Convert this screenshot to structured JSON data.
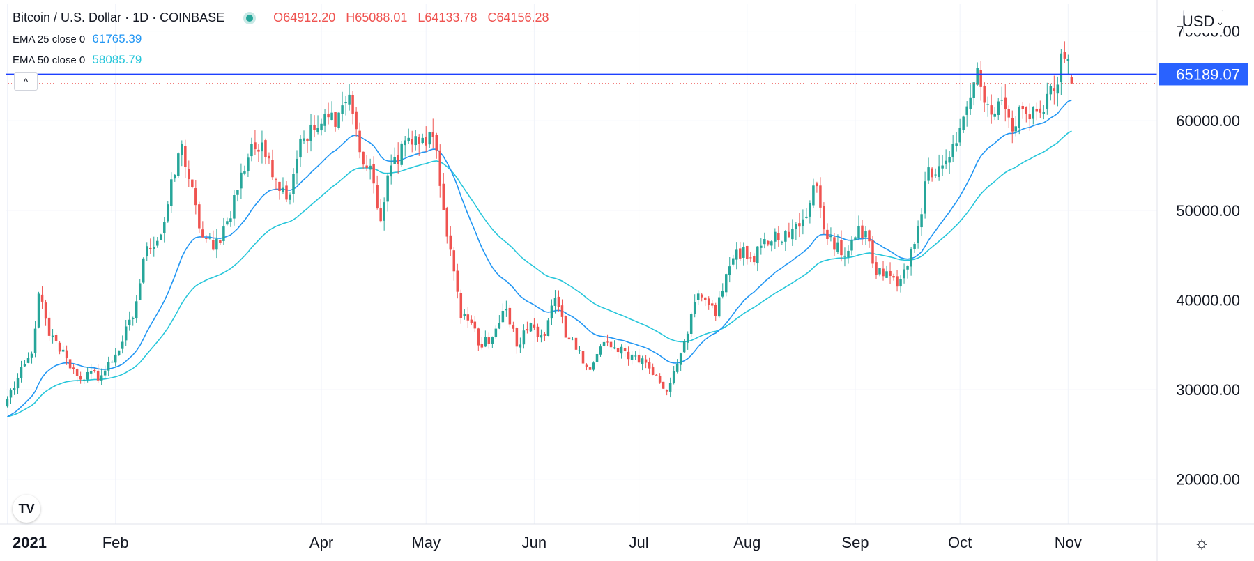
{
  "header": {
    "symbol": "Bitcoin / U.S. Dollar",
    "interval": "1D",
    "exchange": "COINBASE",
    "ohlc": {
      "o_label": "O",
      "o": "64912.20",
      "h_label": "H",
      "h": "65088.01",
      "l_label": "L",
      "l": "64133.78",
      "c_label": "C",
      "c": "64156.28"
    }
  },
  "indicators": [
    {
      "label": "EMA 25 close 0",
      "value": "61765.39",
      "color": "#2196f3"
    },
    {
      "label": "EMA 50 close 0",
      "value": "58085.79",
      "color": "#26c6da"
    }
  ],
  "controls": {
    "collapse_symbol": "^",
    "currency": "USD",
    "currency_arrow": "⌄",
    "logo_text": "TV",
    "settings_icon": "☼"
  },
  "colors": {
    "up": "#26a69a",
    "down": "#ef5350",
    "ema25": "#2196f3",
    "ema50": "#26c6da",
    "hline": "#1e40ff",
    "price_label_bg": "#2962ff",
    "grid": "#f0f3fa"
  },
  "chart_data": {
    "type": "candlestick",
    "title": "Bitcoin / U.S. Dollar, 1D, COINBASE",
    "ylim": [
      15000,
      73000
    ],
    "y_ticks": [
      20000,
      30000,
      40000,
      50000,
      60000,
      70000
    ],
    "y_tick_labels": [
      "20000.00",
      "30000.00",
      "40000.00",
      "50000.00",
      "60000.00",
      "70000.00"
    ],
    "x_tick_labels": [
      {
        "label": "2021",
        "index": 0
      },
      {
        "label": "Feb",
        "index": 31
      },
      {
        "label": "Apr",
        "index": 90
      },
      {
        "label": "May",
        "index": 120
      },
      {
        "label": "Jun",
        "index": 151
      },
      {
        "label": "Jul",
        "index": 181
      },
      {
        "label": "Aug",
        "index": 212
      },
      {
        "label": "Sep",
        "index": 243
      },
      {
        "label": "Oct",
        "index": 273
      },
      {
        "label": "Nov",
        "index": 304
      }
    ],
    "total_slots": 330,
    "horizontal_line": 65189.07,
    "horizontal_line_label": "65189.07",
    "last_close": 64156.28,
    "anchors": [
      [
        0,
        29000
      ],
      [
        7,
        34000
      ],
      [
        9,
        40700
      ],
      [
        12,
        36000
      ],
      [
        17,
        33500
      ],
      [
        20,
        31500
      ],
      [
        27,
        31600
      ],
      [
        31,
        33900
      ],
      [
        36,
        38000
      ],
      [
        40,
        46000
      ],
      [
        44,
        47300
      ],
      [
        50,
        57400
      ],
      [
        55,
        48000
      ],
      [
        59,
        45600
      ],
      [
        63,
        48800
      ],
      [
        70,
        57400
      ],
      [
        75,
        55800
      ],
      [
        80,
        51200
      ],
      [
        84,
        58000
      ],
      [
        88,
        59000
      ],
      [
        95,
        60900
      ],
      [
        98,
        62900
      ],
      [
        101,
        56500
      ],
      [
        105,
        53000
      ],
      [
        107,
        48800
      ],
      [
        110,
        55000
      ],
      [
        114,
        57800
      ],
      [
        118,
        57400
      ],
      [
        122,
        58200
      ],
      [
        125,
        50000
      ],
      [
        128,
        43200
      ],
      [
        130,
        38000
      ],
      [
        133,
        37400
      ],
      [
        136,
        34700
      ],
      [
        140,
        36800
      ],
      [
        143,
        39000
      ],
      [
        146,
        34800
      ],
      [
        150,
        37400
      ],
      [
        154,
        36000
      ],
      [
        157,
        40200
      ],
      [
        160,
        35800
      ],
      [
        164,
        34400
      ],
      [
        167,
        32200
      ],
      [
        171,
        35300
      ],
      [
        175,
        34200
      ],
      [
        179,
        33900
      ],
      [
        183,
        33000
      ],
      [
        187,
        30800
      ],
      [
        189,
        29800
      ],
      [
        191,
        32100
      ],
      [
        194,
        35400
      ],
      [
        197,
        39800
      ],
      [
        200,
        40000
      ],
      [
        203,
        38200
      ],
      [
        206,
        42900
      ],
      [
        209,
        45600
      ],
      [
        213,
        44700
      ],
      [
        217,
        46800
      ],
      [
        220,
        47600
      ],
      [
        224,
        47000
      ],
      [
        228,
        49000
      ],
      [
        232,
        52700
      ],
      [
        235,
        46800
      ],
      [
        239,
        45000
      ],
      [
        243,
        47000
      ],
      [
        246,
        47700
      ],
      [
        249,
        42800
      ],
      [
        252,
        43200
      ],
      [
        255,
        41500
      ],
      [
        258,
        43800
      ],
      [
        261,
        48200
      ],
      [
        264,
        54800
      ],
      [
        268,
        55000
      ],
      [
        272,
        57500
      ],
      [
        275,
        61600
      ],
      [
        278,
        65900
      ],
      [
        280,
        62000
      ],
      [
        283,
        60800
      ],
      [
        286,
        61300
      ],
      [
        288,
        58800
      ],
      [
        291,
        61300
      ],
      [
        294,
        61500
      ],
      [
        297,
        61000
      ],
      [
        300,
        63300
      ],
      [
        302,
        67500
      ],
      [
        304,
        66900
      ],
      [
        305,
        64156.28
      ]
    ],
    "ema25_last": 61765.39,
    "ema50_last": 58085.79
  }
}
